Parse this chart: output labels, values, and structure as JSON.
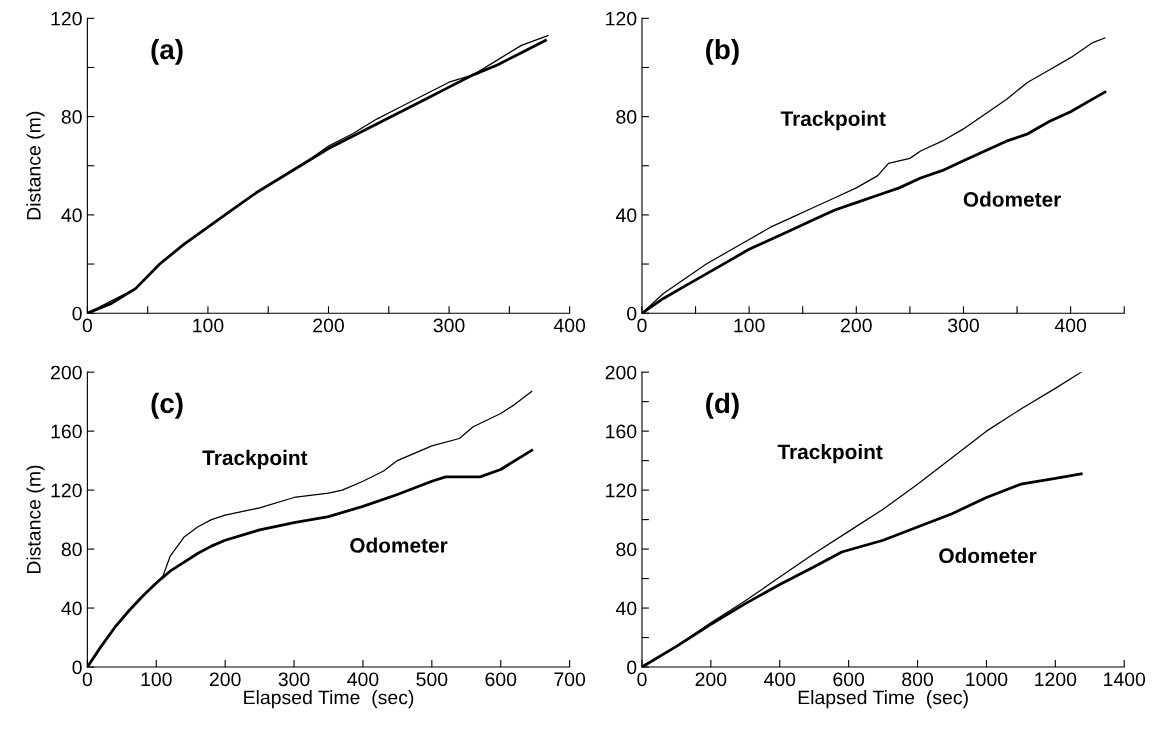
{
  "chart_data": [
    {
      "type": "line",
      "title": "(a)",
      "ylabel": "Distance (m)",
      "xlim": [
        0,
        400
      ],
      "ylim": [
        0,
        120
      ],
      "xticks": [
        0,
        {
          "value": 50,
          "label": null
        },
        100,
        {
          "value": 150,
          "label": null
        },
        200,
        {
          "value": 250,
          "label": null
        },
        300,
        {
          "value": 350,
          "label": null
        },
        400
      ],
      "yticks": [
        0,
        {
          "value": 20,
          "label": null
        },
        40,
        {
          "value": 60,
          "label": null
        },
        80,
        {
          "value": 100,
          "label": null
        },
        120
      ],
      "grid": false,
      "legend": false,
      "series": [
        {
          "color": "#000000",
          "x": [
            0,
            20,
            40,
            60,
            80,
            100,
            120,
            140,
            160,
            180,
            200,
            220,
            240,
            260,
            280,
            300,
            320,
            340,
            360,
            382
          ],
          "values": [
            0,
            5,
            10,
            20,
            28,
            35,
            42,
            49,
            55,
            61,
            68,
            73,
            79,
            84,
            89,
            94,
            97,
            103,
            109,
            113
          ]
        },
        {
          "color": "#000000",
          "x": [
            0,
            20,
            40,
            60,
            80,
            100,
            120,
            140,
            160,
            180,
            200,
            220,
            240,
            260,
            280,
            300,
            320,
            340,
            360,
            380
          ],
          "values": [
            0,
            4,
            10,
            20,
            28,
            35,
            42,
            49,
            55,
            61,
            67,
            72,
            77,
            82,
            87,
            92,
            97,
            101,
            106,
            111
          ]
        }
      ]
    },
    {
      "type": "line",
      "title": "(b)",
      "xlim": [
        0,
        450
      ],
      "ylim": [
        0,
        120
      ],
      "xticks": [
        0,
        {
          "value": 50,
          "label": null
        },
        100,
        {
          "value": 150,
          "label": null
        },
        200,
        {
          "value": 250,
          "label": null
        },
        300,
        {
          "value": 350,
          "label": null
        },
        400,
        {
          "value": 450,
          "label": null
        }
      ],
      "yticks": [
        0,
        {
          "value": 20,
          "label": null
        },
        40,
        {
          "value": 60,
          "label": null
        },
        80,
        {
          "value": 100,
          "label": null
        },
        120
      ],
      "grid": false,
      "legend": false,
      "series": [
        {
          "name": "Trackpoint",
          "color": "#000000",
          "x": [
            0,
            20,
            40,
            60,
            80,
            100,
            120,
            140,
            160,
            180,
            200,
            220,
            230,
            250,
            260,
            280,
            300,
            320,
            340,
            360,
            380,
            400,
            420,
            432
          ],
          "values": [
            0,
            8,
            14,
            20,
            25,
            30,
            35,
            39,
            43,
            47,
            51,
            56,
            61,
            63,
            66,
            70,
            75,
            81,
            87,
            94,
            99,
            104,
            110,
            112
          ]
        },
        {
          "name": "Odometer",
          "color": "#000000",
          "x": [
            0,
            20,
            40,
            60,
            80,
            100,
            120,
            140,
            160,
            180,
            200,
            220,
            240,
            260,
            280,
            300,
            320,
            340,
            360,
            380,
            400,
            420,
            432
          ],
          "values": [
            0,
            6,
            11,
            16,
            21,
            26,
            30,
            34,
            38,
            42,
            45,
            48,
            51,
            55,
            58,
            62,
            66,
            70,
            73,
            78,
            82,
            87,
            90
          ]
        }
      ]
    },
    {
      "type": "line",
      "title": "(c)",
      "xlabel": "Elapsed Time  (sec)",
      "ylabel": "Distance (m)",
      "xlim": [
        0,
        700
      ],
      "ylim": [
        0,
        200
      ],
      "xticks": [
        0,
        100,
        200,
        300,
        400,
        500,
        600,
        700
      ],
      "yticks": [
        0,
        40,
        80,
        120,
        160,
        200
      ],
      "grid": false,
      "legend": false,
      "series": [
        {
          "name": "Trackpoint",
          "color": "#000000",
          "x": [
            0,
            20,
            40,
            60,
            80,
            100,
            110,
            120,
            140,
            160,
            180,
            200,
            250,
            300,
            350,
            370,
            400,
            430,
            450,
            500,
            540,
            560,
            600,
            620,
            645
          ],
          "values": [
            0,
            14,
            27,
            38,
            48,
            57,
            62,
            75,
            88,
            95,
            100,
            103,
            108,
            115,
            118,
            120,
            126,
            133,
            140,
            150,
            155,
            163,
            172,
            178,
            187
          ]
        },
        {
          "name": "Odometer",
          "color": "#000000",
          "x": [
            0,
            20,
            40,
            60,
            80,
            100,
            120,
            140,
            160,
            180,
            200,
            250,
            300,
            350,
            400,
            450,
            500,
            520,
            570,
            600,
            645
          ],
          "values": [
            0,
            14,
            27,
            38,
            48,
            57,
            65,
            71,
            77,
            82,
            86,
            93,
            98,
            102,
            109,
            117,
            126,
            129,
            129,
            134,
            147
          ]
        }
      ]
    },
    {
      "type": "line",
      "title": "(d)",
      "xlabel": "Elapsed Time  (sec)",
      "xlim": [
        0,
        1400
      ],
      "ylim": [
        0,
        200
      ],
      "xticks": [
        0,
        200,
        400,
        600,
        800,
        1000,
        1200,
        1400
      ],
      "yticks": [
        0,
        {
          "value": 20,
          "label": null
        },
        40,
        {
          "value": 60,
          "label": null
        },
        80,
        {
          "value": 100,
          "label": null
        },
        120,
        {
          "value": 140,
          "label": null
        },
        160,
        {
          "value": 180,
          "label": null
        },
        200
      ],
      "grid": false,
      "legend": false,
      "series": [
        {
          "name": "Trackpoint",
          "color": "#000000",
          "x": [
            0,
            100,
            200,
            300,
            400,
            500,
            600,
            700,
            800,
            900,
            1000,
            1100,
            1200,
            1275
          ],
          "values": [
            0,
            14,
            30,
            45,
            61,
            77,
            92,
            107,
            124,
            142,
            160,
            175,
            189,
            200
          ]
        },
        {
          "name": "Odometer",
          "color": "#000000",
          "x": [
            0,
            100,
            200,
            300,
            400,
            500,
            580,
            700,
            800,
            900,
            1000,
            1100,
            1200,
            1275
          ],
          "values": [
            0,
            14,
            29,
            43,
            56,
            68,
            78,
            86,
            95,
            104,
            115,
            124,
            128,
            131
          ]
        }
      ]
    }
  ]
}
